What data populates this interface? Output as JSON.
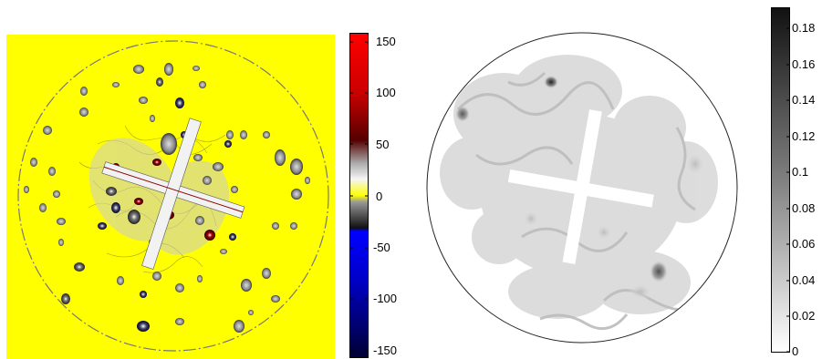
{
  "left_panel": {
    "colorbar": {
      "tick_labels": [
        "150",
        "100",
        "50",
        "0",
        "-50",
        "-100",
        "-150"
      ],
      "colors": {
        "top": "#ff0000",
        "upper_mid": "#6b0000",
        "light_band": "#e8e8e8",
        "mid": "#ffff00",
        "dark_band": "#1a1a1a",
        "lower": "#0000ff",
        "bottom": "#000044"
      }
    },
    "background_color": "#ffff00"
  },
  "right_panel": {
    "colorbar": {
      "tick_labels": [
        "0.18",
        "0.16",
        "0.14",
        "0.12",
        "0.1",
        "0.08",
        "0.06",
        "0.04",
        "0.02",
        "0"
      ]
    }
  }
}
